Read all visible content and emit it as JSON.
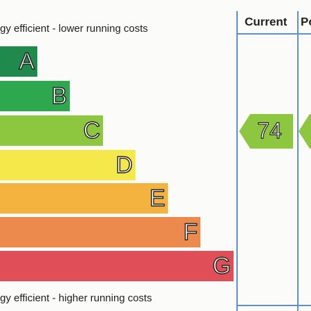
{
  "captions": {
    "top": "gy efficient - lower running costs",
    "bottom": "gy efficient - higher running costs"
  },
  "columns": {
    "current": "Current",
    "potential": "Po"
  },
  "bands": [
    {
      "letter": "A",
      "color": "#1f8a4c"
    },
    {
      "letter": "B",
      "color": "#2ea84f"
    },
    {
      "letter": "C",
      "color": "#8dc63f"
    },
    {
      "letter": "D",
      "color": "#f5e84a"
    },
    {
      "letter": "E",
      "color": "#f4b33f"
    },
    {
      "letter": "F",
      "color": "#ec8a4e"
    },
    {
      "letter": "G",
      "color": "#e04f57"
    }
  ],
  "current_rating": {
    "value": "74",
    "color": "#8dc63f"
  },
  "potential_rating": {
    "color": "#8dc63f"
  }
}
